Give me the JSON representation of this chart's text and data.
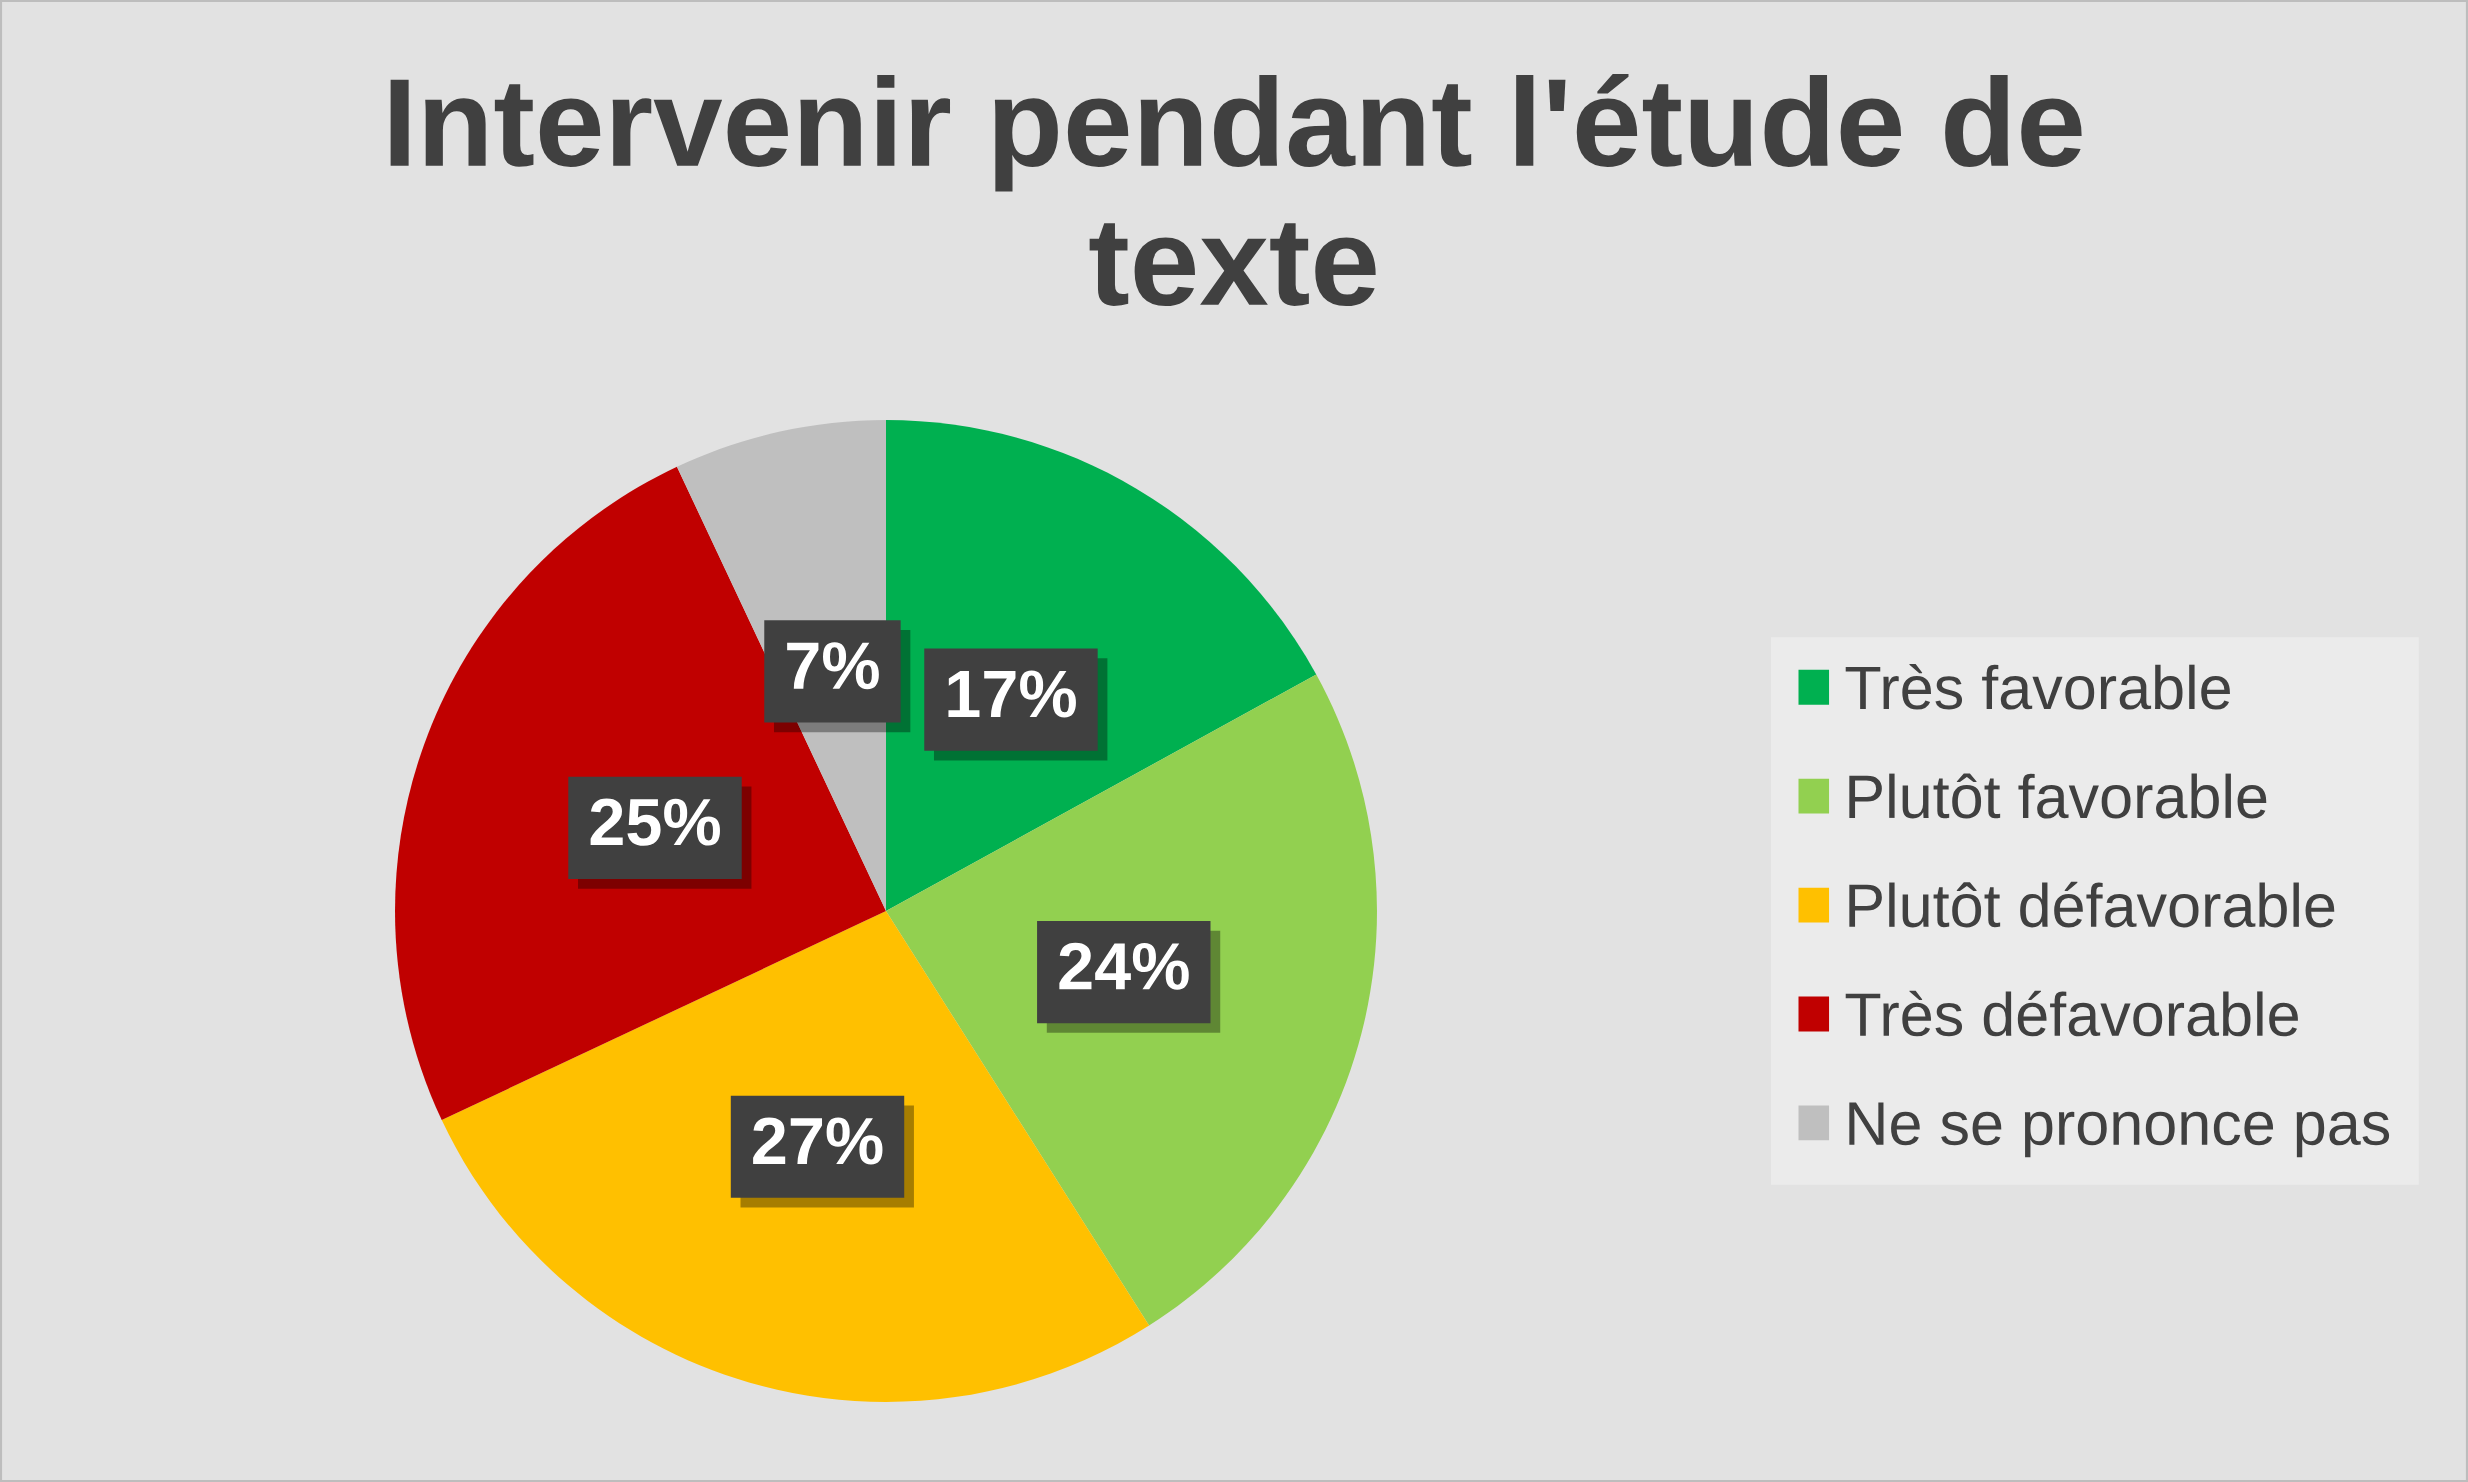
{
  "chart_data": {
    "type": "pie",
    "title": "Intervenir pendant l'étude de\ntexte",
    "categories": [
      "Très favorable",
      "Plutôt favorable",
      "Plutôt défavorable",
      "Très défavorable",
      "Ne se prononce pas"
    ],
    "values": [
      17,
      24,
      27,
      25,
      7
    ],
    "colors": [
      "#00b050",
      "#92d050",
      "#ffc000",
      "#c00000",
      "#bfbfbf"
    ],
    "value_labels": [
      "17%",
      "24%",
      "27%",
      "25%",
      "7%"
    ],
    "legend": "right"
  }
}
